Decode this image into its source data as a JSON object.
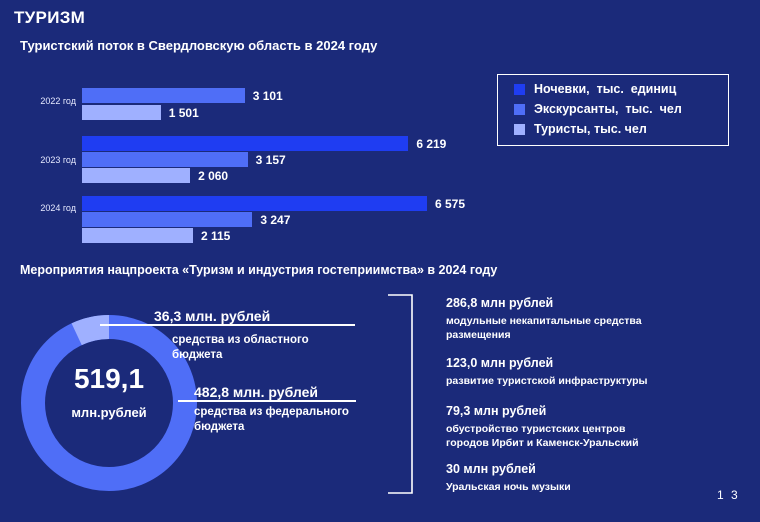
{
  "header": {
    "title": "ТУРИЗМ",
    "page_number": "1 3"
  },
  "chart_data": [
    {
      "type": "bar",
      "orientation": "horizontal",
      "title": "Туристский поток в Свердловскую область в 2024 году",
      "categories": [
        "2022 год",
        "2023 год",
        "2024 год"
      ],
      "series": [
        {
          "name": "Ночевки,  тыс.  единиц",
          "values": [
            null,
            6219,
            6575
          ],
          "labels": [
            "",
            "6 219",
            "6 575"
          ],
          "color": "#1f3df2"
        },
        {
          "name": "Экскурсанты,  тыс.  чел",
          "values": [
            3101,
            3157,
            3247
          ],
          "labels": [
            "3 101",
            "3 157",
            "3 247"
          ],
          "color": "#4f6ef7"
        },
        {
          "name": "Туристы, тыс. чел",
          "values": [
            1501,
            2060,
            2115
          ],
          "labels": [
            "1 501",
            "2 060",
            "2 115"
          ],
          "color": "#9fb0ff"
        }
      ],
      "legend_position": "top-right",
      "grid": false
    },
    {
      "type": "pie",
      "subtype": "donut",
      "title": "Мероприятия нацпроекта «Туризм и индустрия гостеприимства» в 2024 году",
      "center_value": "519,1",
      "center_unit": "млн.рублей",
      "slices": [
        {
          "label": "средства из областного бюджета",
          "value": 36.3,
          "amount_text": "36,3 млн. рублей",
          "color": "#9fb0ff"
        },
        {
          "label": "средства из федерального бюджета",
          "value": 482.8,
          "amount_text": "482,8 млн. рублей",
          "color": "#4f6ef7"
        }
      ]
    }
  ],
  "sources": [
    {
      "amount": "36,3 млн. рублей",
      "desc1": "средства из областного",
      "desc2": "бюджета"
    },
    {
      "amount": "482,8 млн. рублей",
      "desc1": "средства из федерального",
      "desc2": "бюджета"
    }
  ],
  "items": [
    {
      "amount": "286,8 млн рублей",
      "desc1": "модульные некапитальные средства",
      "desc2": "размещения"
    },
    {
      "amount": "123,0 млн рублей",
      "desc1": "развитие туристской инфраструктуры",
      "desc2": ""
    },
    {
      "amount": "79,3 млн рублей",
      "desc1": "обустройство туристских центров",
      "desc2": "городов Ирбит и Каменск-Уральский"
    },
    {
      "amount": "30 млн рублей",
      "desc1": "Уральская ночь музыки",
      "desc2": ""
    }
  ]
}
